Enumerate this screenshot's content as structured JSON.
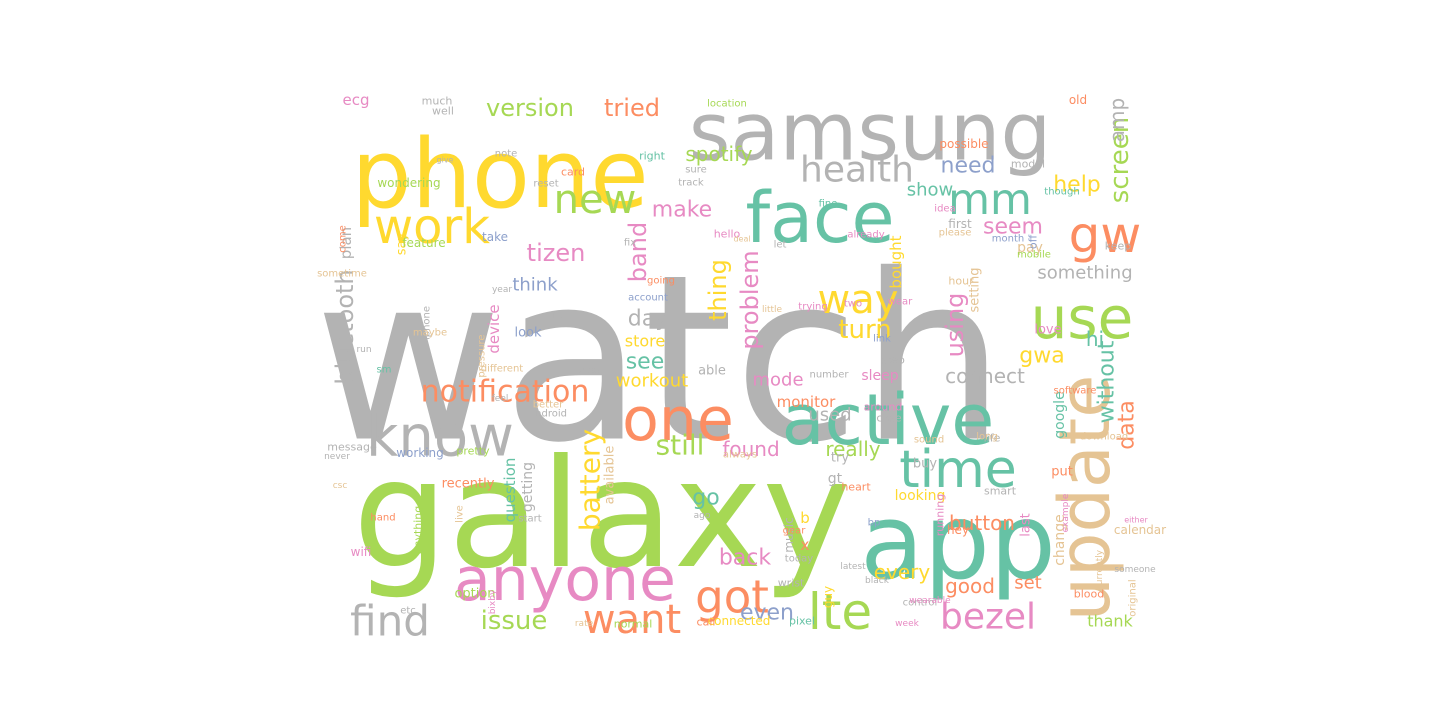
{
  "palette": {
    "gray": "#b3b3b3",
    "yellow": "#ffd92f",
    "green": "#a6d854",
    "teal": "#66c2a5",
    "orange": "#fc8d62",
    "pink": "#e78ac3",
    "tan": "#e5c494",
    "blue": "#8da0cb"
  },
  "words": [
    {
      "text": "watch",
      "weight": 100,
      "color": "gray"
    },
    {
      "text": "galaxy",
      "weight": 80,
      "color": "green"
    },
    {
      "text": "samsung",
      "weight": 52,
      "color": "gray"
    },
    {
      "text": "phone",
      "weight": 55,
      "color": "yellow"
    },
    {
      "text": "app",
      "weight": 60,
      "color": "teal"
    },
    {
      "text": "update",
      "weight": 45,
      "color": "tan",
      "vertical": true
    },
    {
      "text": "active",
      "weight": 50,
      "color": "teal"
    },
    {
      "text": "face",
      "weight": 44,
      "color": "teal"
    },
    {
      "text": "anyone",
      "weight": 38,
      "color": "pink"
    },
    {
      "text": "one",
      "weight": 36,
      "color": "orange"
    },
    {
      "text": "know",
      "weight": 36,
      "color": "gray"
    },
    {
      "text": "use",
      "weight": 35,
      "color": "green"
    },
    {
      "text": "time",
      "weight": 32,
      "color": "teal"
    },
    {
      "text": "work",
      "weight": 30,
      "color": "yellow"
    },
    {
      "text": "gw",
      "weight": 32,
      "color": "orange"
    },
    {
      "text": "got",
      "weight": 30,
      "color": "orange"
    },
    {
      "text": "lte",
      "weight": 30,
      "color": "green"
    },
    {
      "text": "mm",
      "weight": 28,
      "color": "teal"
    },
    {
      "text": "new",
      "weight": 26,
      "color": "green"
    },
    {
      "text": "health",
      "weight": 24,
      "color": "gray"
    },
    {
      "text": "find",
      "weight": 26,
      "color": "gray"
    },
    {
      "text": "want",
      "weight": 25,
      "color": "orange"
    },
    {
      "text": "bezel",
      "weight": 24,
      "color": "pink"
    },
    {
      "text": "way",
      "weight": 24,
      "color": "yellow"
    },
    {
      "text": "notification",
      "weight": 20,
      "color": "orange"
    },
    {
      "text": "battery",
      "weight": 20,
      "color": "yellow",
      "vertical": true
    },
    {
      "text": "still",
      "weight": 19,
      "color": "green"
    },
    {
      "text": "version",
      "weight": 17,
      "color": "green"
    },
    {
      "text": "tried",
      "weight": 17,
      "color": "orange"
    },
    {
      "text": "screen",
      "weight": 17,
      "color": "green",
      "vertical": true
    },
    {
      "text": "bluetooth",
      "weight": 17,
      "color": "gray",
      "vertical": true
    },
    {
      "text": "issue",
      "weight": 17,
      "color": "green"
    },
    {
      "text": "turn",
      "weight": 17,
      "color": "yellow"
    },
    {
      "text": "problem",
      "weight": 16,
      "color": "pink",
      "vertical": true
    },
    {
      "text": "band",
      "weight": 16,
      "color": "pink",
      "vertical": true
    },
    {
      "text": "thing",
      "weight": 16,
      "color": "yellow",
      "vertical": true
    },
    {
      "text": "using",
      "weight": 16,
      "color": "pink",
      "vertical": true
    },
    {
      "text": "tizen",
      "weight": 15,
      "color": "pink"
    },
    {
      "text": "data",
      "weight": 15,
      "color": "orange",
      "vertical": true
    },
    {
      "text": "without",
      "weight": 15,
      "color": "teal",
      "vertical": true
    },
    {
      "text": "back",
      "weight": 15,
      "color": "pink"
    },
    {
      "text": "even",
      "weight": 15,
      "color": "blue"
    },
    {
      "text": "help",
      "weight": 15,
      "color": "yellow"
    },
    {
      "text": "seem",
      "weight": 15,
      "color": "pink"
    },
    {
      "text": "make",
      "weight": 15,
      "color": "pink"
    },
    {
      "text": "day",
      "weight": 15,
      "color": "gray"
    },
    {
      "text": "go",
      "weight": 15,
      "color": "teal"
    },
    {
      "text": "gwa",
      "weight": 14,
      "color": "yellow"
    },
    {
      "text": "see",
      "weight": 14,
      "color": "teal"
    },
    {
      "text": "need",
      "weight": 14,
      "color": "blue"
    },
    {
      "text": "spotify",
      "weight": 14,
      "color": "green"
    },
    {
      "text": "amp",
      "weight": 14,
      "color": "gray",
      "vertical": true
    },
    {
      "text": "hi",
      "weight": 14,
      "color": "teal"
    },
    {
      "text": "found",
      "weight": 13,
      "color": "pink"
    },
    {
      "text": "really",
      "weight": 13,
      "color": "green"
    },
    {
      "text": "every",
      "weight": 13,
      "color": "yellow"
    },
    {
      "text": "good",
      "weight": 13,
      "color": "orange"
    },
    {
      "text": "button",
      "weight": 12,
      "color": "orange"
    },
    {
      "text": "connect",
      "weight": 12,
      "color": "gray"
    },
    {
      "text": "workout",
      "weight": 12,
      "color": "yellow"
    },
    {
      "text": "mode",
      "weight": 12,
      "color": "pink"
    },
    {
      "text": "used",
      "weight": 12,
      "color": "gray"
    },
    {
      "text": "think",
      "weight": 12,
      "color": "blue"
    },
    {
      "text": "show",
      "weight": 12,
      "color": "teal"
    },
    {
      "text": "something",
      "weight": 11,
      "color": "gray"
    },
    {
      "text": "store",
      "weight": 11,
      "color": "yellow"
    },
    {
      "text": "set",
      "weight": 12,
      "color": "orange"
    },
    {
      "text": "thank",
      "weight": 11,
      "color": "green"
    },
    {
      "text": "bought",
      "weight": 11,
      "color": "yellow",
      "vertical": true
    },
    {
      "text": "device",
      "weight": 11,
      "color": "pink",
      "vertical": true
    },
    {
      "text": "question",
      "weight": 11,
      "color": "teal",
      "vertical": true
    },
    {
      "text": "getting",
      "weight": 11,
      "color": "gray",
      "vertical": true
    },
    {
      "text": "google",
      "weight": 11,
      "color": "teal",
      "vertical": true
    },
    {
      "text": "change",
      "weight": 10,
      "color": "tan",
      "vertical": true
    },
    {
      "text": "available",
      "weight": 10,
      "color": "tan",
      "vertical": true
    },
    {
      "text": "monitor",
      "weight": 10,
      "color": "orange"
    },
    {
      "text": "plan",
      "weight": 10,
      "color": "gray",
      "vertical": true
    },
    {
      "text": "pay",
      "weight": 10,
      "color": "tan"
    },
    {
      "text": "setting",
      "weight": 10,
      "color": "tan",
      "vertical": true
    },
    {
      "text": "recently",
      "weight": 9,
      "color": "orange"
    },
    {
      "text": "option",
      "weight": 9,
      "color": "green"
    },
    {
      "text": "ecg",
      "weight": 10,
      "color": "pink"
    },
    {
      "text": "x",
      "weight": 10,
      "color": "orange"
    },
    {
      "text": "b",
      "weight": 10,
      "color": "yellow"
    },
    {
      "text": "say",
      "weight": 9,
      "color": "yellow",
      "vertical": true
    },
    {
      "text": "buy",
      "weight": 9,
      "color": "gray"
    },
    {
      "text": "look",
      "weight": 9,
      "color": "blue"
    },
    {
      "text": "looking",
      "weight": 9,
      "color": "yellow"
    },
    {
      "text": "sleep",
      "weight": 9,
      "color": "pink"
    },
    {
      "text": "able",
      "weight": 9,
      "color": "gray"
    },
    {
      "text": "feature",
      "weight": 8,
      "color": "green"
    },
    {
      "text": "working",
      "weight": 8,
      "color": "blue"
    },
    {
      "text": "much",
      "weight": 8,
      "color": "gray"
    },
    {
      "text": "well",
      "weight": 8,
      "color": "gray"
    },
    {
      "text": "gt",
      "weight": 9,
      "color": "gray"
    },
    {
      "text": "try",
      "weight": 9,
      "color": "gray"
    },
    {
      "text": "music",
      "weight": 8,
      "color": "gray",
      "vertical": true
    },
    {
      "text": "old",
      "weight": 8,
      "color": "orange"
    },
    {
      "text": "wifi",
      "weight": 8,
      "color": "pink"
    },
    {
      "text": "guy",
      "weight": 8,
      "color": "yellow",
      "vertical": true
    },
    {
      "text": "wondering",
      "weight": 8,
      "color": "green"
    },
    {
      "text": "take",
      "weight": 8,
      "color": "blue"
    },
    {
      "text": "message",
      "weight": 7,
      "color": "gray"
    },
    {
      "text": "pretty",
      "weight": 7,
      "color": "green"
    },
    {
      "text": "step",
      "weight": 7,
      "color": "gray"
    },
    {
      "text": "around",
      "weight": 7,
      "color": "pink"
    },
    {
      "text": "case",
      "weight": 7,
      "color": "gray"
    },
    {
      "text": "anything",
      "weight": 7,
      "color": "green",
      "vertical": true
    },
    {
      "text": "put",
      "weight": 8,
      "color": "orange"
    },
    {
      "text": "hey",
      "weight": 7,
      "color": "orange"
    },
    {
      "text": "love",
      "weight": 8,
      "color": "pink"
    },
    {
      "text": "smart",
      "weight": 7,
      "color": "gray"
    },
    {
      "text": "heart",
      "weight": 7,
      "color": "orange"
    },
    {
      "text": "running",
      "weight": 7,
      "color": "pink",
      "vertical": true
    },
    {
      "text": "last",
      "weight": 8,
      "color": "pink",
      "vertical": true
    },
    {
      "text": "off",
      "weight": 7,
      "color": "blue",
      "vertical": true
    },
    {
      "text": "connected",
      "weight": 7,
      "color": "yellow"
    },
    {
      "text": "call",
      "weight": 7,
      "color": "orange"
    },
    {
      "text": "normal",
      "weight": 7,
      "color": "green"
    },
    {
      "text": "pixel",
      "weight": 7,
      "color": "teal"
    },
    {
      "text": "wrist",
      "weight": 7,
      "color": "gray"
    },
    {
      "text": "blood",
      "weight": 7,
      "color": "orange"
    },
    {
      "text": "software",
      "weight": 6,
      "color": "orange"
    },
    {
      "text": "download",
      "weight": 6,
      "color": "tan"
    },
    {
      "text": "life",
      "weight": 7,
      "color": "gray"
    },
    {
      "text": "long",
      "weight": 6,
      "color": "tan"
    },
    {
      "text": "sound",
      "weight": 6,
      "color": "tan"
    },
    {
      "text": "keep",
      "weight": 7,
      "color": "gray"
    },
    {
      "text": "possible",
      "weight": 7,
      "color": "orange"
    },
    {
      "text": "first",
      "weight": 7,
      "color": "gray"
    },
    {
      "text": "please",
      "weight": 6,
      "color": "tan"
    },
    {
      "text": "hour",
      "weight": 7,
      "color": "tan"
    },
    {
      "text": "model",
      "weight": 6,
      "color": "gray"
    },
    {
      "text": "note",
      "weight": 6,
      "color": "gray"
    },
    {
      "text": "right",
      "weight": 7,
      "color": "teal"
    },
    {
      "text": "card",
      "weight": 6,
      "color": "orange"
    },
    {
      "text": "sure",
      "weight": 6,
      "color": "gray"
    },
    {
      "text": "track",
      "weight": 6,
      "color": "gray"
    },
    {
      "text": "reset",
      "weight": 6,
      "color": "gray"
    },
    {
      "text": "location",
      "weight": 6,
      "color": "green"
    },
    {
      "text": "idea",
      "weight": 6,
      "color": "pink"
    },
    {
      "text": "month",
      "weight": 6,
      "color": "blue"
    },
    {
      "text": "mobile",
      "weight": 6,
      "color": "green"
    },
    {
      "text": "though",
      "weight": 6,
      "color": "teal"
    },
    {
      "text": "fine",
      "weight": 6,
      "color": "teal"
    },
    {
      "text": "already",
      "weight": 6,
      "color": "pink"
    },
    {
      "text": "hello",
      "weight": 6,
      "color": "pink"
    },
    {
      "text": "let",
      "weight": 7,
      "color": "gray"
    },
    {
      "text": "fix",
      "weight": 6,
      "color": "gray"
    },
    {
      "text": "going",
      "weight": 6,
      "color": "orange"
    },
    {
      "text": "year",
      "weight": 6,
      "color": "gray"
    },
    {
      "text": "account",
      "weight": 5,
      "color": "blue"
    },
    {
      "text": "trying",
      "weight": 6,
      "color": "pink"
    },
    {
      "text": "two",
      "weight": 6,
      "color": "pink"
    },
    {
      "text": "wear",
      "weight": 6,
      "color": "pink"
    },
    {
      "text": "link",
      "weight": 6,
      "color": "blue"
    },
    {
      "text": "little",
      "weight": 6,
      "color": "tan"
    },
    {
      "text": "fit",
      "weight": 6,
      "color": "gray"
    },
    {
      "text": "iphone",
      "weight": 5,
      "color": "gray",
      "vertical": true
    },
    {
      "text": "maybe",
      "weight": 6,
      "color": "tan"
    },
    {
      "text": "run",
      "weight": 6,
      "color": "gray"
    },
    {
      "text": "sm",
      "weight": 6,
      "color": "teal"
    },
    {
      "text": "pressure",
      "weight": 5,
      "color": "tan",
      "vertical": true
    },
    {
      "text": "different",
      "weight": 6,
      "color": "tan"
    },
    {
      "text": "press",
      "weight": 6,
      "color": "gray"
    },
    {
      "text": "feel",
      "weight": 6,
      "color": "gray"
    },
    {
      "text": "better",
      "weight": 5,
      "color": "tan"
    },
    {
      "text": "android",
      "weight": 5,
      "color": "gray"
    },
    {
      "text": "number",
      "weight": 6,
      "color": "gray"
    },
    {
      "text": "always",
      "weight": 6,
      "color": "tan"
    },
    {
      "text": "never",
      "weight": 6,
      "color": "gray"
    },
    {
      "text": "csc",
      "weight": 6,
      "color": "tan"
    },
    {
      "text": "hand",
      "weight": 5,
      "color": "orange"
    },
    {
      "text": "live",
      "weight": 5,
      "color": "tan",
      "vertical": true
    },
    {
      "text": "start",
      "weight": 6,
      "color": "gray"
    },
    {
      "text": "ago",
      "weight": 6,
      "color": "gray"
    },
    {
      "text": "gear",
      "weight": 6,
      "color": "orange"
    },
    {
      "text": "today",
      "weight": 5,
      "color": "gray"
    },
    {
      "text": "latest",
      "weight": 6,
      "color": "gray"
    },
    {
      "text": "bp",
      "weight": 6,
      "color": "blue"
    },
    {
      "text": "black",
      "weight": 5,
      "color": "gray"
    },
    {
      "text": "control",
      "weight": 6,
      "color": "gray"
    },
    {
      "text": "week",
      "weight": 5,
      "color": "pink"
    },
    {
      "text": "wearable",
      "weight": 6,
      "color": "pink"
    },
    {
      "text": "etc",
      "weight": 5,
      "color": "gray"
    },
    {
      "text": "bixby",
      "weight": 5,
      "color": "pink",
      "vertical": true
    },
    {
      "text": "rate",
      "weight": 6,
      "color": "tan"
    },
    {
      "text": "deal",
      "weight": 5,
      "color": "tan"
    },
    {
      "text": "sometime",
      "weight": 5,
      "color": "tan"
    },
    {
      "text": "come",
      "weight": 5,
      "color": "orange",
      "vertical": true
    },
    {
      "text": "give",
      "weight": 6,
      "color": "gray"
    },
    {
      "text": "example",
      "weight": 5,
      "color": "pink",
      "vertical": true
    },
    {
      "text": "either",
      "weight": 6,
      "color": "pink"
    },
    {
      "text": "currently",
      "weight": 5,
      "color": "tan",
      "vertical": true
    },
    {
      "text": "someone",
      "weight": 5,
      "color": "gray"
    },
    {
      "text": "original",
      "weight": 5,
      "color": "tan",
      "vertical": true
    },
    {
      "text": "calendar",
      "weight": 5,
      "color": "tan"
    },
    {
      "text": "home",
      "weight": 5,
      "color": "green"
    },
    {
      "text": "end",
      "weight": 5,
      "color": "gray"
    },
    {
      "text": "u",
      "weight": 7,
      "color": "pink"
    }
  ]
}
